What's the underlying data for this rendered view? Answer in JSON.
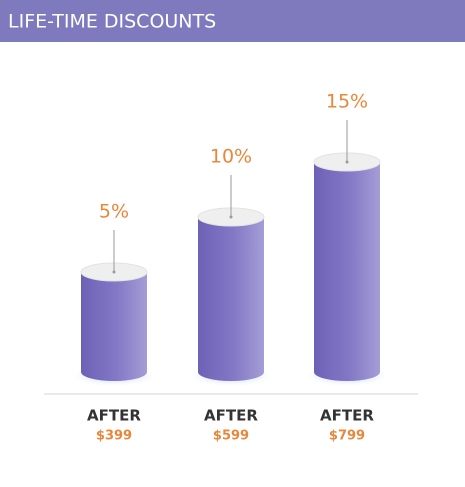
{
  "chart_data": {
    "type": "bar",
    "title": "LIFE-TIME DISCOUNTS",
    "categories": [
      "AFTER",
      "AFTER",
      "AFTER"
    ],
    "category_sublabels": [
      "$399",
      "$599",
      "$799"
    ],
    "values": [
      5,
      10,
      15
    ],
    "value_labels": [
      "5%",
      "10%",
      "15%"
    ],
    "color": "#7a6fc0"
  }
}
